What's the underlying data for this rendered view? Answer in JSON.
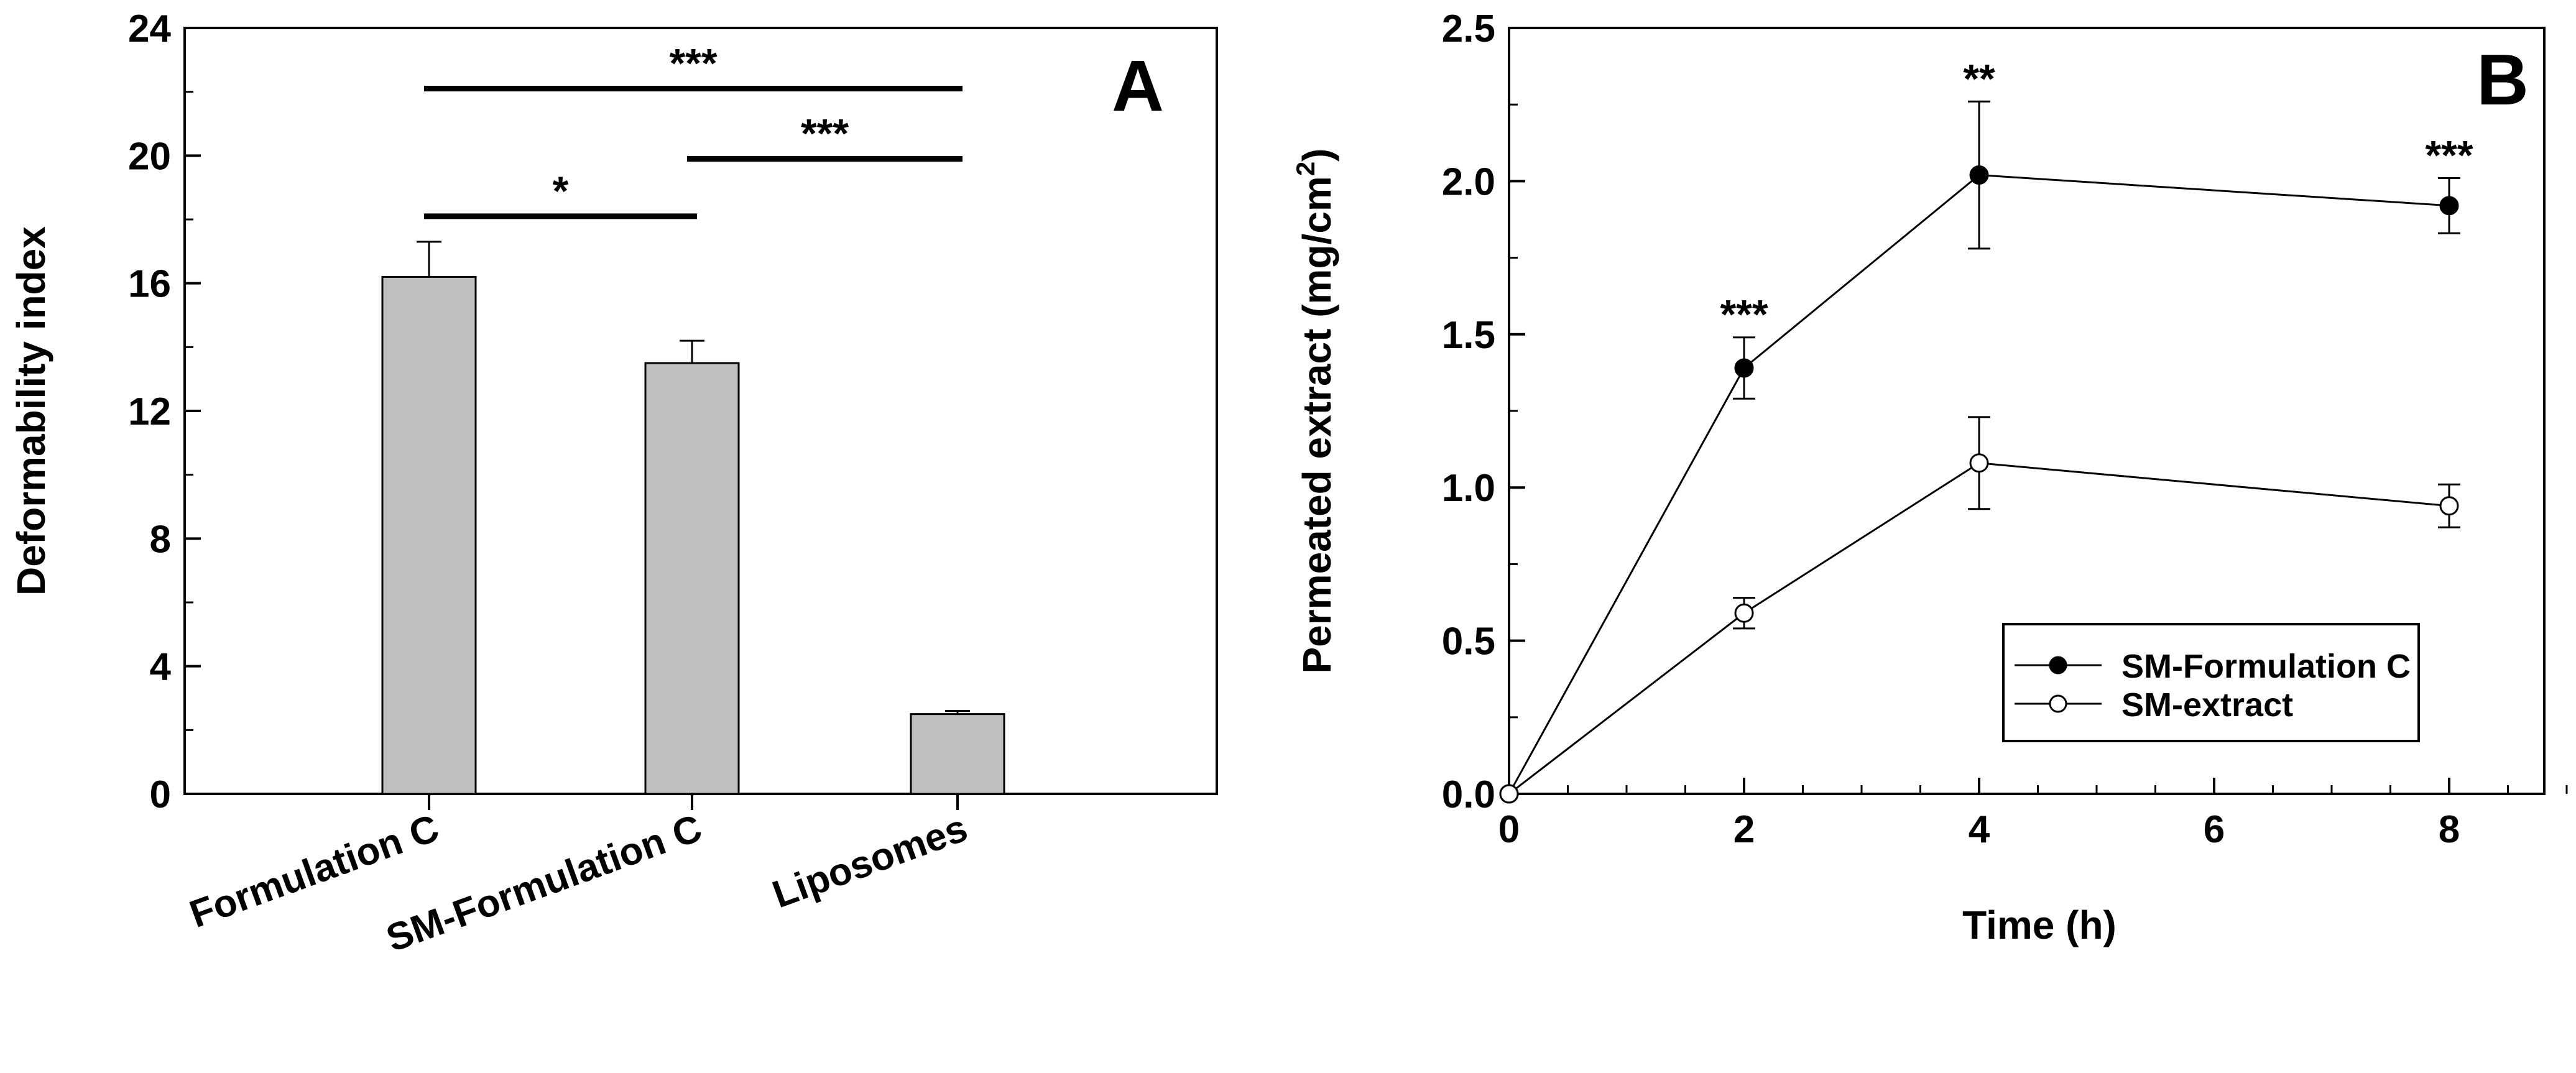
{
  "chart_data": [
    {
      "panel_label": "A",
      "type": "bar",
      "ylabel": "Deformability index",
      "xlabel": "",
      "ylim": [
        0,
        24
      ],
      "yticks": [
        "0",
        "4",
        "8",
        "12",
        "16",
        "20",
        "24"
      ],
      "categories": [
        "Formulation C",
        "SM-Formulation C",
        "Liposomes"
      ],
      "values": [
        16.2,
        13.5,
        2.5
      ],
      "errors": [
        1.1,
        0.7,
        0.1
      ],
      "bar_color": "#c0c0c0",
      "significance": [
        {
          "from": 0,
          "to": 1,
          "label": "*",
          "y": 18.1
        },
        {
          "from": 1,
          "to": 2,
          "label": "***",
          "y": 19.9
        },
        {
          "from": 0,
          "to": 2,
          "label": "***",
          "y": 22.1
        }
      ]
    },
    {
      "panel_label": "B",
      "type": "line",
      "xlabel": "Time (h)",
      "ylabel_main": "Permeated extract (mg/cm",
      "ylabel_sup": "2",
      "ylabel_end": ")",
      "xlim": [
        0,
        9
      ],
      "ylim": [
        0,
        2.5
      ],
      "xticks": [
        "0",
        "2",
        "4",
        "6",
        "8"
      ],
      "yticks": [
        "0.0",
        "0.5",
        "1.0",
        "1.5",
        "2.0",
        "2.5"
      ],
      "x": [
        0,
        2,
        4,
        8
      ],
      "series": [
        {
          "name": "SM-Formulation C",
          "marker": "filled",
          "values": [
            0,
            1.39,
            2.02,
            1.92
          ],
          "errors": [
            0,
            0.1,
            0.24,
            0.09
          ]
        },
        {
          "name": "SM-extract",
          "marker": "open",
          "values": [
            0,
            0.59,
            1.08,
            0.94
          ],
          "errors": [
            0,
            0.05,
            0.15,
            0.07
          ]
        }
      ],
      "significance": [
        {
          "x": 2,
          "label": "***"
        },
        {
          "x": 4,
          "label": "**"
        },
        {
          "x": 8,
          "label": "***"
        }
      ],
      "legend_position": "bottom-right"
    }
  ]
}
